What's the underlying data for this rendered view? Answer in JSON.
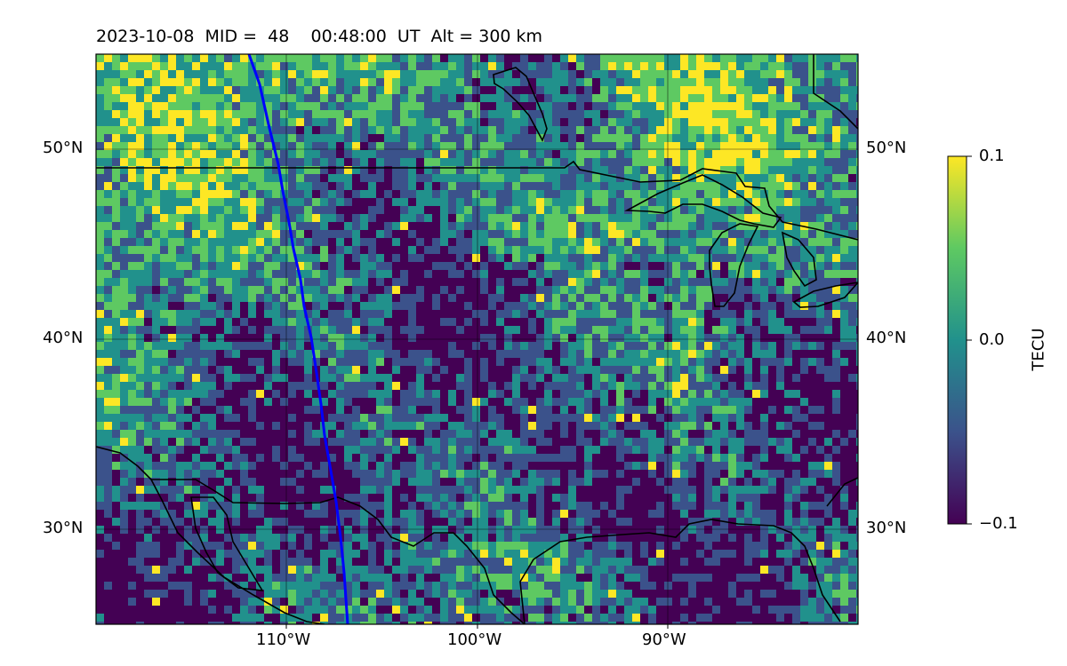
{
  "title": "2023-10-08  MID =  48    00:48:00  UT  Alt = 300 km",
  "map": {
    "lon_range": [
      -120,
      -80
    ],
    "lat_range": [
      25,
      55
    ],
    "lat_labels": [
      "50°N",
      "40°N",
      "30°N"
    ],
    "lon_labels": [
      "110°W",
      "100°W",
      "90°W"
    ],
    "track_color": "#0000ff"
  },
  "colorbar": {
    "label": "TECU",
    "ticks": [
      "0.1",
      "0.0",
      "−0.1"
    ],
    "vmin": -0.1,
    "vmax": 0.1,
    "colormap": "viridis",
    "colors": [
      "#440154",
      "#3b528b",
      "#21918c",
      "#5ec962",
      "#fde725"
    ]
  }
}
